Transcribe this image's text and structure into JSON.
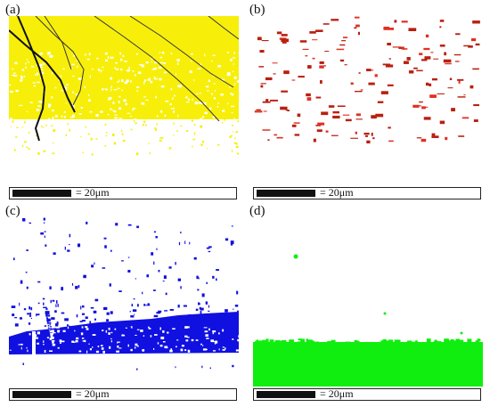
{
  "panels": [
    {
      "label": "(a)",
      "scale_text": "= 20μm",
      "phase_color": "#f7ef0a"
    },
    {
      "label": "(b)",
      "scale_text": "= 20μm",
      "phase_color": "#b82010"
    },
    {
      "label": "(c)",
      "scale_text": "= 20μm",
      "phase_color": "#1010e0"
    },
    {
      "label": "(d)",
      "scale_text": "= 20μm",
      "phase_color": "#10ee10"
    }
  ]
}
